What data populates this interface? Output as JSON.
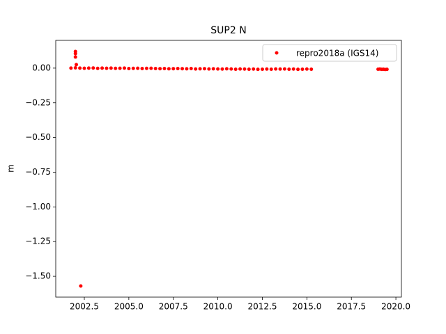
{
  "chart_data": {
    "type": "scatter",
    "title": "SUP2 N",
    "y_label": "m",
    "legend": "upper right",
    "xlim": [
      2000.895,
      2020.31
    ],
    "ylim": [
      -1.65,
      0.2
    ],
    "xticks": [
      2002.5,
      {
        "value": 2005,
        "label": "2005.0"
      },
      2007.5,
      {
        "value": 2010,
        "label": "2010.0"
      },
      2012.5,
      {
        "value": 2015,
        "label": "2015.0"
      },
      2017.5,
      {
        "value": 2020,
        "label": "2020.0"
      }
    ],
    "yticks": [
      {
        "value": 0,
        "label": "0.00"
      },
      {
        "value": -0.25,
        "label": "−0.25"
      },
      {
        "value": -0.5,
        "label": "−0.50"
      },
      {
        "value": -0.75,
        "label": "−0.75"
      },
      {
        "value": -1,
        "label": "−1.00"
      },
      {
        "value": -1.25,
        "label": "−1.25"
      },
      {
        "value": -1.5,
        "label": "−1.50"
      }
    ],
    "series": [
      {
        "name": "repro2018a (IGS14)",
        "color": "#ff0000",
        "x": [
          2001.75,
          2002.0,
          2002.25,
          2002.5,
          2002.75,
          2003.0,
          2003.25,
          2003.5,
          2003.75,
          2004.0,
          2004.25,
          2004.5,
          2004.75,
          2005.0,
          2005.25,
          2005.5,
          2005.75,
          2006.0,
          2006.25,
          2006.5,
          2006.75,
          2007.0,
          2007.25,
          2007.5,
          2007.75,
          2008.0,
          2008.25,
          2008.5,
          2008.75,
          2009.0,
          2009.25,
          2009.5,
          2009.75,
          2010.0,
          2010.25,
          2010.5,
          2010.75,
          2011.0,
          2011.25,
          2011.5,
          2011.75,
          2012.0,
          2012.25,
          2012.5,
          2012.75,
          2013.0,
          2013.25,
          2013.5,
          2013.75,
          2014.0,
          2014.25,
          2014.5,
          2014.75,
          2015.0,
          2015.25,
          2002.0,
          2002.0,
          2002.0,
          2002.05,
          2002.3,
          2019.0,
          2019.1,
          2019.2,
          2019.3,
          2019.4,
          2019.5
        ],
        "values": [
          0.0,
          0.002,
          0.0,
          -0.001,
          0.0,
          0.001,
          -0.002,
          0.0,
          -0.001,
          0.0,
          -0.002,
          -0.001,
          0.0,
          -0.003,
          -0.002,
          -0.001,
          -0.003,
          -0.002,
          -0.001,
          -0.003,
          -0.004,
          -0.003,
          -0.005,
          -0.004,
          -0.003,
          -0.004,
          -0.005,
          -0.003,
          -0.006,
          -0.005,
          -0.004,
          -0.006,
          -0.005,
          -0.006,
          -0.007,
          -0.005,
          -0.006,
          -0.008,
          -0.006,
          -0.007,
          -0.008,
          -0.007,
          -0.009,
          -0.008,
          -0.007,
          -0.008,
          -0.006,
          -0.007,
          -0.006,
          -0.008,
          -0.007,
          -0.009,
          -0.008,
          -0.007,
          -0.008,
          0.12,
          0.105,
          0.08,
          0.025,
          -1.57,
          -0.008,
          -0.007,
          -0.009,
          -0.008,
          -0.01,
          -0.009
        ]
      }
    ]
  }
}
